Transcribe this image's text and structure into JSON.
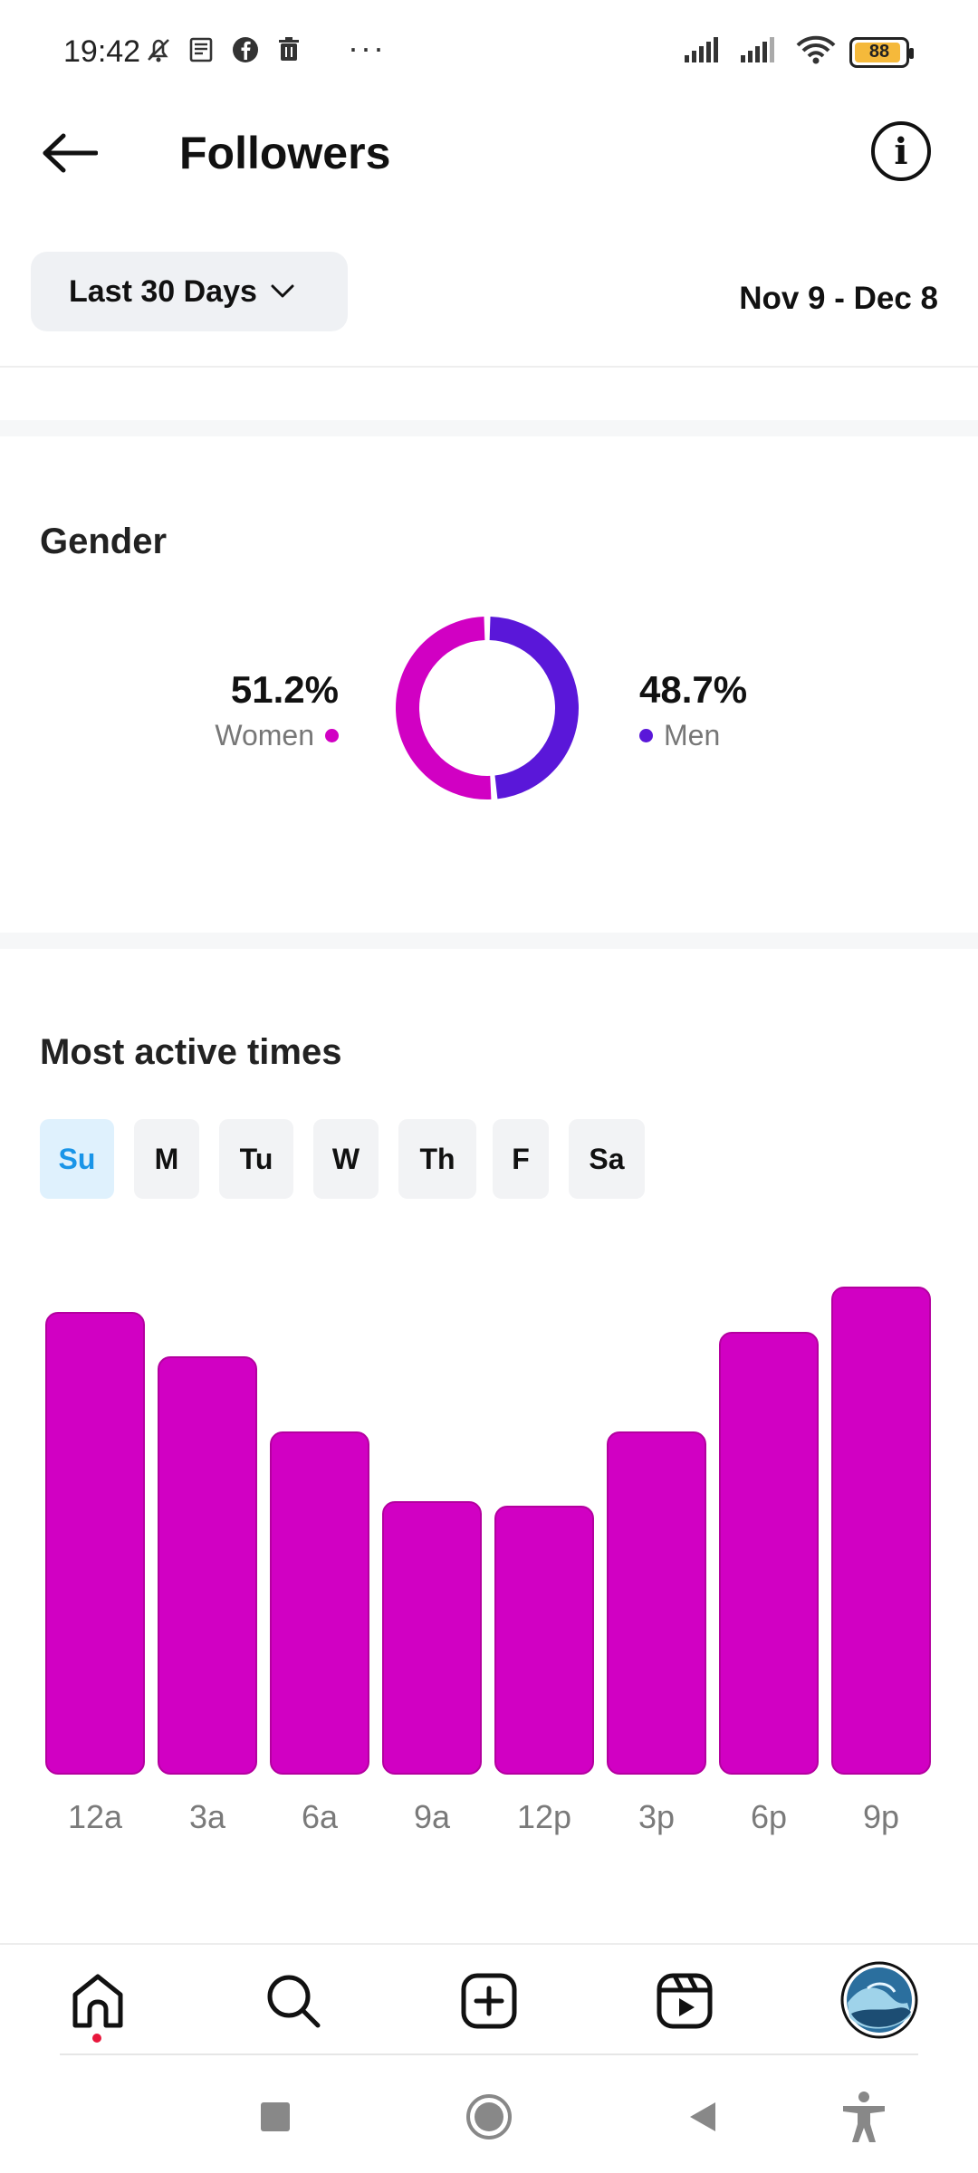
{
  "status_bar": {
    "time": "19:42",
    "battery_level": "88",
    "overflow": "···",
    "icons": [
      "muted-bell-icon",
      "news-icon",
      "facebook-icon",
      "trash-icon",
      "signal-icon",
      "signal-icon",
      "wifi-icon",
      "battery-icon"
    ]
  },
  "header": {
    "title": "Followers",
    "back_icon": "back-arrow-icon",
    "info_icon": "info-icon"
  },
  "filter": {
    "range_label": "Last 30 Days",
    "date_range": "Nov 9 - Dec 8"
  },
  "gender": {
    "title": "Gender",
    "women_pct": "51.2%",
    "women_label": "Women",
    "men_pct": "48.7%",
    "men_label": "Men",
    "women_value": 51.2,
    "men_value": 48.7,
    "women_color": "#d100c3",
    "men_color": "#5a17d9"
  },
  "active_times": {
    "title": "Most active times",
    "days": [
      {
        "label": "Su",
        "active": true
      },
      {
        "label": "M",
        "active": false
      },
      {
        "label": "Tu",
        "active": false
      },
      {
        "label": "W",
        "active": false
      },
      {
        "label": "Th",
        "active": false
      },
      {
        "label": "F",
        "active": false
      },
      {
        "label": "Sa",
        "active": false
      }
    ]
  },
  "chart_data": {
    "type": "bar",
    "categories": [
      "12a",
      "3a",
      "6a",
      "9a",
      "12p",
      "3p",
      "6p",
      "9p"
    ],
    "values": [
      93,
      84,
      69,
      55,
      54,
      69,
      89,
      98
    ],
    "ylim": [
      0,
      100
    ],
    "color": "#d100c3",
    "grid": false
  },
  "bottom_nav": {
    "items": [
      "home-icon",
      "search-icon",
      "create-icon",
      "reels-icon",
      "profile-avatar"
    ]
  },
  "system_nav": {
    "items": [
      "recents-button",
      "home-button",
      "back-button",
      "accessibility-button"
    ]
  }
}
